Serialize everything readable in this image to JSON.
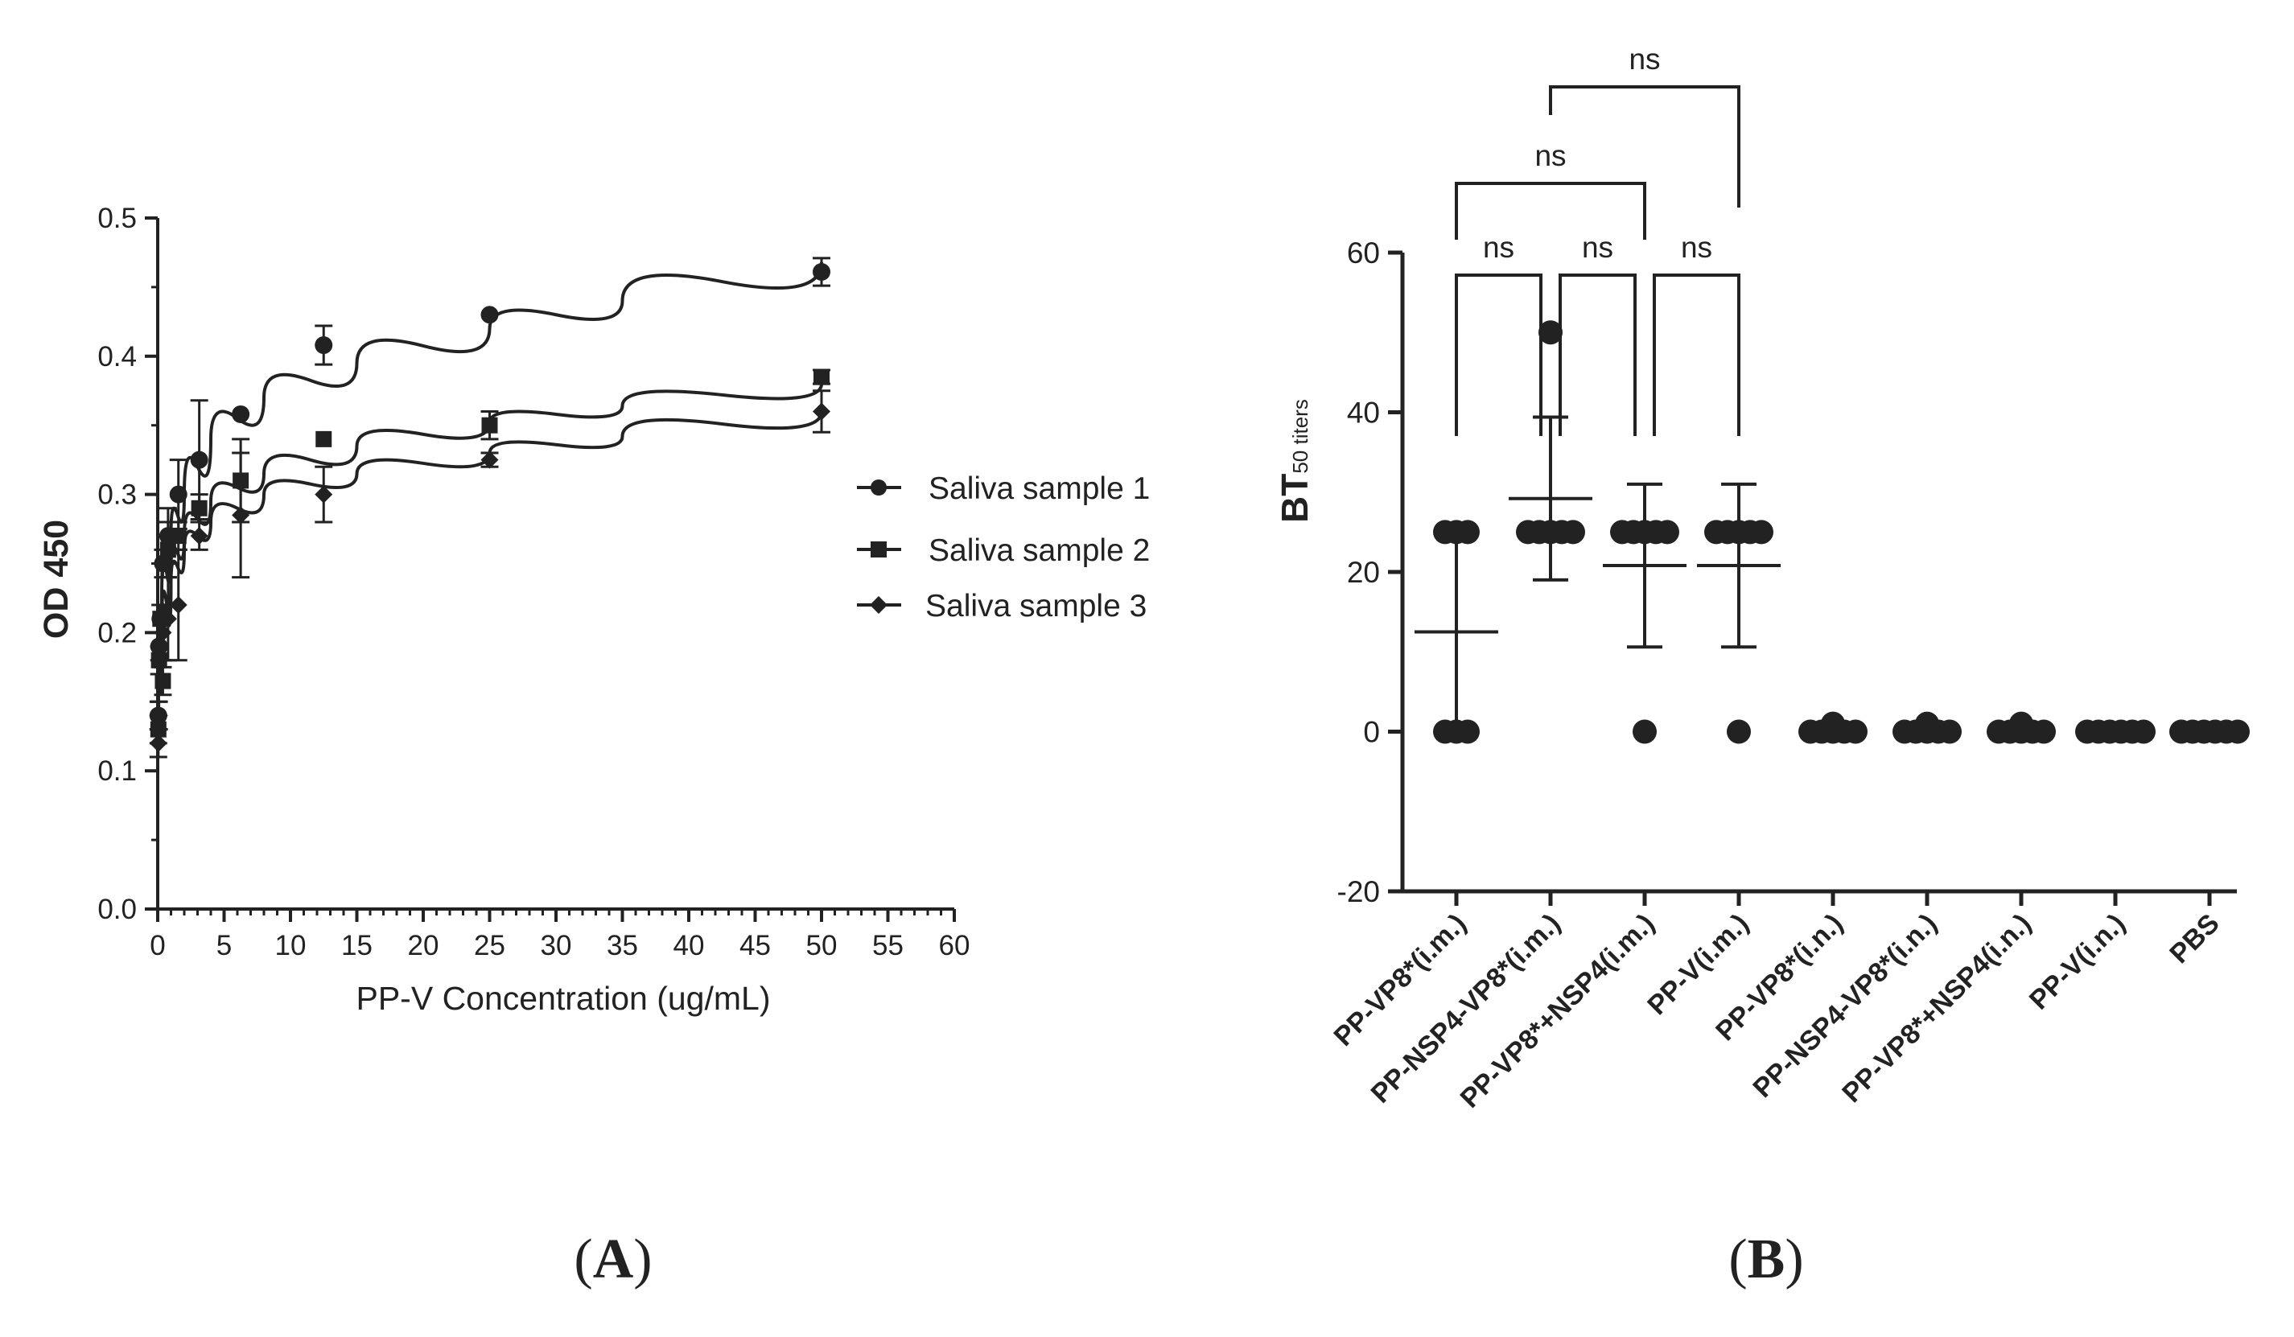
{
  "panels": {
    "a_label": "A",
    "b_label": "B"
  },
  "chart_data": [
    {
      "type": "scatter",
      "panel": "A",
      "title": "",
      "xlabel": "PP-V Concentration (ug/mL)",
      "ylabel": "OD 450",
      "xlim": [
        0,
        60
      ],
      "ylim": [
        0,
        0.5
      ],
      "xticks": [
        0,
        5,
        10,
        15,
        20,
        25,
        30,
        35,
        40,
        45,
        50,
        55,
        60
      ],
      "yticks": [
        0.0,
        0.1,
        0.2,
        0.3,
        0.4,
        0.5
      ],
      "legend_position": "right",
      "series": [
        {
          "name": "Saliva sample 1",
          "marker": "circle",
          "x": [
            0.05,
            0.1,
            0.2,
            0.39,
            0.78,
            1.56,
            3.13,
            6.25,
            12.5,
            25,
            50
          ],
          "y": [
            0.14,
            0.19,
            0.21,
            0.25,
            0.27,
            0.3,
            0.325,
            0.358,
            0.408,
            0.43,
            0.461
          ],
          "err": [
            0.01,
            0.01,
            0.01,
            0.01,
            0.02,
            0.025,
            0.043,
            0.0,
            0.014,
            0.0,
            0.01
          ],
          "fit": [
            [
              0.05,
              0.17
            ],
            [
              0.3,
              0.22
            ],
            [
              1,
              0.27
            ],
            [
              2,
              0.3
            ],
            [
              4,
              0.34
            ],
            [
              8,
              0.37
            ],
            [
              15,
              0.395
            ],
            [
              25,
              0.42
            ],
            [
              35,
              0.44
            ],
            [
              50,
              0.468
            ]
          ]
        },
        {
          "name": "Saliva sample 2",
          "marker": "square",
          "x": [
            0.05,
            0.1,
            0.2,
            0.39,
            0.78,
            1.56,
            3.13,
            6.25,
            12.5,
            25,
            50
          ],
          "y": [
            0.13,
            0.18,
            0.21,
            0.165,
            0.26,
            0.27,
            0.29,
            0.31,
            0.34,
            0.35,
            0.385
          ],
          "err": [
            0.01,
            0.01,
            0.01,
            0.01,
            0.02,
            0.01,
            0.01,
            0.03,
            0.0,
            0.01,
            0.005
          ],
          "fit": [
            [
              0.05,
              0.15
            ],
            [
              0.3,
              0.2
            ],
            [
              1,
              0.245
            ],
            [
              2,
              0.27
            ],
            [
              4,
              0.295
            ],
            [
              8,
              0.315
            ],
            [
              15,
              0.335
            ],
            [
              25,
              0.352
            ],
            [
              35,
              0.364
            ],
            [
              50,
              0.38
            ]
          ]
        },
        {
          "name": "Saliva sample 3",
          "marker": "diamond",
          "x": [
            0.05,
            0.1,
            0.2,
            0.39,
            0.78,
            1.56,
            3.13,
            6.25,
            12.5,
            25,
            50
          ],
          "y": [
            0.12,
            0.14,
            0.19,
            0.2,
            0.21,
            0.22,
            0.27,
            0.285,
            0.3,
            0.325,
            0.36
          ],
          "err": [
            0.01,
            0.01,
            0.01,
            0.02,
            0.03,
            0.04,
            0.01,
            0.045,
            0.02,
            0.005,
            0.015
          ],
          "fit": [
            [
              0.05,
              0.14
            ],
            [
              0.3,
              0.19
            ],
            [
              1,
              0.235
            ],
            [
              2,
              0.26
            ],
            [
              4,
              0.28
            ],
            [
              8,
              0.3
            ],
            [
              15,
              0.315
            ],
            [
              25,
              0.33
            ],
            [
              35,
              0.342
            ],
            [
              50,
              0.36
            ]
          ]
        }
      ]
    },
    {
      "type": "scatter",
      "panel": "B",
      "title": "",
      "xlabel": "",
      "ylabel_main": "BT",
      "ylabel_sub": "50 titers",
      "ylim": [
        -20,
        60
      ],
      "yticks": [
        -20,
        0,
        20,
        40,
        60
      ],
      "categories": [
        "PP-VP8*(i.m.)",
        "PP-NSP4-VP8*(i.m.)",
        "PP-VP8*+NSP4(i.m.)",
        "PP-V(i.m.)",
        "PP-VP8*(i.n.)",
        "PP-NSP4-VP8*(i.n.)",
        "PP-VP8*+NSP4(i.n.)",
        "PP-V(i.n.)",
        "PBS"
      ],
      "points": [
        [
          25,
          25,
          25,
          0,
          0,
          0
        ],
        [
          50,
          25,
          25,
          25,
          25,
          25
        ],
        [
          25,
          25,
          25,
          25,
          25,
          0
        ],
        [
          25,
          25,
          25,
          25,
          25,
          0
        ],
        [
          1,
          0,
          0,
          0,
          0,
          0
        ],
        [
          1,
          0,
          0,
          0,
          0,
          0
        ],
        [
          1,
          0,
          0,
          0,
          0,
          0
        ],
        [
          0,
          0,
          0,
          0,
          0,
          0
        ],
        [
          0,
          0,
          0,
          0,
          0,
          0
        ]
      ],
      "means": [
        12.5,
        29.2,
        20.8,
        20.8,
        null,
        null,
        null,
        null,
        null
      ],
      "sd": [
        12.5,
        10.2,
        10.2,
        10.2,
        null,
        null,
        null,
        null,
        null
      ],
      "comparisons": [
        {
          "from": 0,
          "to": 1,
          "label": "ns",
          "level": 1
        },
        {
          "from": 1,
          "to": 2,
          "label": "ns",
          "level": 1
        },
        {
          "from": 2,
          "to": 3,
          "label": "ns",
          "level": 1
        },
        {
          "from": 0,
          "to": 2,
          "label": "ns",
          "level": 2
        },
        {
          "from": 1,
          "to": 3,
          "label": "ns",
          "level": 3
        }
      ]
    }
  ]
}
